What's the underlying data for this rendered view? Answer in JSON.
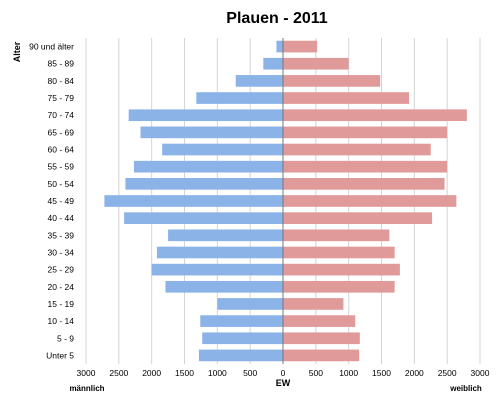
{
  "chart_data": {
    "type": "bar",
    "orientation": "horizontal-population-pyramid",
    "title": "Plauen - 2011",
    "ylabel": "Alter",
    "xlabel": "EW",
    "left_side_label": "männlich",
    "right_side_label": "weiblich",
    "xlim": [
      -3000,
      3000
    ],
    "x_ticks": [
      3000,
      2500,
      2000,
      1500,
      1000,
      500,
      0,
      500,
      1000,
      1500,
      2000,
      2500,
      3000
    ],
    "grid": true,
    "categories": [
      "90 und älter",
      "85 - 89",
      "80 - 84",
      "75 - 79",
      "70 - 74",
      "65 - 69",
      "60 - 64",
      "55 - 59",
      "50 - 54",
      "45 - 49",
      "40 - 44",
      "35 - 39",
      "30 - 34",
      "25 - 29",
      "20 - 24",
      "15 - 19",
      "10 - 14",
      "5 - 9",
      "Unter 5"
    ],
    "series": [
      {
        "name": "männlich",
        "color": "#8cb3e8",
        "values": [
          100,
          300,
          720,
          1320,
          2350,
          2170,
          1840,
          2270,
          2400,
          2720,
          2420,
          1750,
          1920,
          2000,
          1790,
          1000,
          1260,
          1230,
          1280
        ]
      },
      {
        "name": "weiblich",
        "color": "#e09a9a",
        "values": [
          520,
          1000,
          1480,
          1920,
          2800,
          2500,
          2250,
          2500,
          2460,
          2640,
          2270,
          1620,
          1700,
          1780,
          1700,
          920,
          1100,
          1170,
          1160
        ]
      }
    ]
  }
}
